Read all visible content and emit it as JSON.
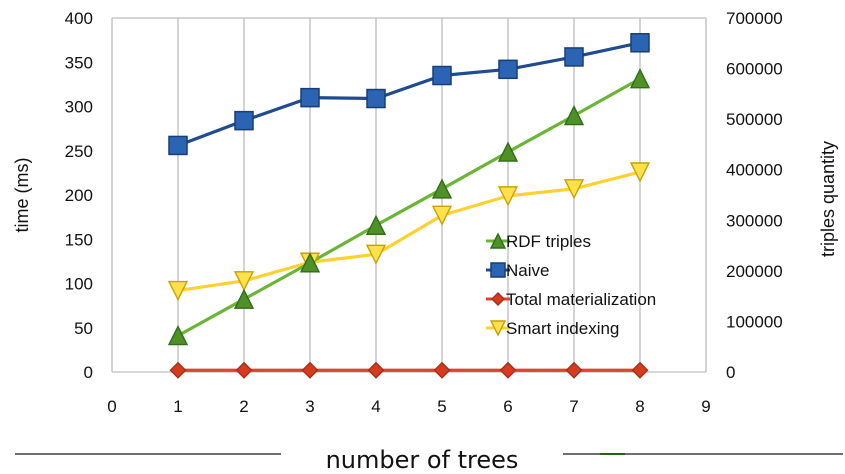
{
  "chart_data": {
    "type": "line",
    "x_axis": {
      "label": "number of trees",
      "range": [
        0,
        9
      ],
      "ticks": [
        0,
        1,
        2,
        3,
        4,
        5,
        6,
        7,
        8,
        9
      ]
    },
    "y_axis_left": {
      "label": "time (ms)",
      "range": [
        0,
        400
      ],
      "ticks": [
        0,
        50,
        100,
        150,
        200,
        250,
        300,
        350,
        400
      ]
    },
    "y_axis_right": {
      "label": "triples quantity",
      "range": [
        0,
        700000
      ],
      "ticks": [
        0,
        100000,
        200000,
        300000,
        400000,
        500000,
        600000,
        700000
      ]
    },
    "x": [
      1,
      2,
      3,
      4,
      5,
      6,
      7,
      8
    ],
    "series": [
      {
        "name": "RDF triples",
        "axis": "right",
        "values": [
          72000,
          144000,
          216000,
          290000,
          362000,
          435000,
          507000,
          580000
        ],
        "color": "#6bb536",
        "marker": "triangle-up",
        "marker_color": "#4f9127"
      },
      {
        "name": "Naive",
        "axis": "left",
        "values": [
          256,
          284,
          310,
          309,
          335,
          342,
          356,
          372
        ],
        "color": "#1f4b8f",
        "marker": "square",
        "marker_color": "#2b64b2"
      },
      {
        "name": "Total materialization",
        "axis": "left",
        "values": [
          2,
          2,
          2,
          2,
          2,
          2,
          2,
          2
        ],
        "color": "#e0442a",
        "marker": "diamond",
        "marker_color": "#d43c1f"
      },
      {
        "name": "Smart indexing",
        "axis": "left",
        "values": [
          92,
          103,
          124,
          133,
          177,
          199,
          207,
          226
        ],
        "color": "#ffd12f",
        "marker": "triangle-down",
        "marker_color": "#ffe14d"
      }
    ],
    "legend": "inside-right",
    "grid": "vertical"
  }
}
